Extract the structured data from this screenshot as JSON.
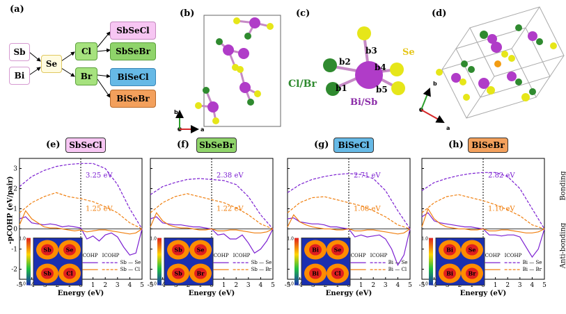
{
  "panel_a": {
    "label": "(a)",
    "elements": [
      "Sb",
      "Bi",
      "Se",
      "Cl",
      "Br"
    ],
    "compounds": [
      "SbSeCl",
      "SbSeBr",
      "BiSeCl",
      "BiSeBr"
    ],
    "compound_colors": [
      "#f7c6f3",
      "#8fd46a",
      "#66b9e6",
      "#f3a05c"
    ]
  },
  "panel_b": {
    "label": "(b)",
    "axis_b": "b",
    "axis_a": "a"
  },
  "panel_c": {
    "label": "(c)",
    "bonds": [
      "b1",
      "b2",
      "b3",
      "b4",
      "b5"
    ],
    "se": "Se",
    "halide": "Cl/Br",
    "center": "Bi/Sb"
  },
  "panel_d": {
    "label": "(d)",
    "axis_b": "b",
    "axis_a": "a"
  },
  "common": {
    "ylabel": "-pCOHP (eV/pair)",
    "xlabel": "Energy (eV)",
    "bonding": "Bonding",
    "antibonding": "Anti-bonding",
    "legend_cohp": "COHP",
    "legend_icohp": "ICOHP",
    "colorbar_max": "1.0",
    "colorbar_min": "0.0"
  },
  "chart_data": [
    {
      "type": "line",
      "label": "(e)",
      "compound": "SbSeCl",
      "color": "#f7c6f3",
      "central": "Sb",
      "halide": "Cl",
      "icohp_se": "3.25 eV",
      "icohp_x": "1.25 eV",
      "legend": [
        "Sb — Se",
        "Sb — Cl"
      ],
      "x": [
        -5,
        -4,
        -3,
        -2,
        -1,
        0,
        1,
        2,
        3,
        4,
        5
      ],
      "xlim": [
        -5,
        5
      ],
      "ylim": [
        -2.5,
        3.5
      ],
      "series": [
        {
          "name": "Sb — Se",
          "style": "solid",
          "x": [
            -5,
            -4.5,
            -4,
            -3.5,
            -3,
            -2.5,
            -2,
            -1.5,
            -1,
            -0.5,
            0,
            0.5,
            1,
            1.5,
            2,
            2.5,
            3,
            3.5,
            4,
            4.5,
            5
          ],
          "y": [
            0.5,
            0.6,
            0.3,
            0.25,
            0.2,
            0.25,
            0.2,
            0.1,
            0.15,
            0.1,
            0.05,
            -0.5,
            -0.35,
            -0.6,
            -0.3,
            -0.2,
            -0.4,
            -0.9,
            -1.3,
            -1.2,
            0.0
          ]
        },
        {
          "name": "Sb — Cl",
          "style": "solid",
          "x": [
            -5,
            -4.5,
            -4,
            -3.5,
            -3,
            -2.5,
            -2,
            -1.5,
            -1,
            -0.5,
            0,
            0.5,
            1,
            1.5,
            2,
            2.5,
            3,
            3.5,
            4,
            4.5,
            5
          ],
          "y": [
            0.2,
            0.9,
            0.5,
            0.3,
            0.1,
            0.05,
            0.05,
            0.0,
            -0.05,
            -0.1,
            -0.05,
            -0.15,
            -0.1,
            -0.05,
            -0.05,
            -0.1,
            -0.15,
            -0.2,
            -0.25,
            -0.2,
            0.0
          ]
        },
        {
          "name": "ICOHP Sb — Se",
          "style": "dashed",
          "x": [
            -5,
            -4,
            -3,
            -2,
            -1,
            0,
            1,
            2,
            3,
            4,
            5
          ],
          "y": [
            2.1,
            2.6,
            2.9,
            3.1,
            3.2,
            3.25,
            3.25,
            3.0,
            2.2,
            1.0,
            0.0
          ]
        },
        {
          "name": "ICOHP Sb — Cl",
          "style": "dashed",
          "x": [
            -5,
            -4,
            -3,
            -2,
            -1,
            0,
            1,
            2,
            3,
            4,
            5
          ],
          "y": [
            0.8,
            1.3,
            1.6,
            1.8,
            1.6,
            1.5,
            1.35,
            1.1,
            0.8,
            0.3,
            0.0
          ]
        }
      ]
    },
    {
      "type": "line",
      "label": "(f)",
      "compound": "SbSeBr",
      "color": "#8fd46a",
      "central": "Sb",
      "halide": "Br",
      "icohp_se": "2.38 eV",
      "icohp_x": "1.22 eV",
      "legend": [
        "Sb — Se",
        "Sb — Br"
      ],
      "x": [
        -5,
        -4,
        -3,
        -2,
        -1,
        0,
        1,
        2,
        3,
        4,
        5
      ],
      "xlim": [
        -5,
        5
      ],
      "ylim": [
        -2.5,
        3.5
      ],
      "series": [
        {
          "name": "Sb — Se",
          "style": "solid",
          "x": [
            -5,
            -4.5,
            -4,
            -3.5,
            -3,
            -2.5,
            -2,
            -1.5,
            -1,
            -0.5,
            0,
            0.5,
            1,
            1.5,
            2,
            2.5,
            3,
            3.5,
            4,
            4.5,
            5
          ],
          "y": [
            0.5,
            0.6,
            0.3,
            0.25,
            0.2,
            0.2,
            0.15,
            0.1,
            0.1,
            0.05,
            0.0,
            -0.3,
            -0.25,
            -0.5,
            -0.5,
            -0.3,
            -0.7,
            -1.2,
            -1.0,
            -0.6,
            0.0
          ]
        },
        {
          "name": "Sb — Br",
          "style": "solid",
          "x": [
            -5,
            -4.5,
            -4,
            -3.5,
            -3,
            -2.5,
            -2,
            -1.5,
            -1,
            -0.5,
            0,
            0.5,
            1,
            1.5,
            2,
            2.5,
            3,
            3.5,
            4,
            4.5,
            5
          ],
          "y": [
            0.1,
            0.8,
            0.4,
            0.2,
            0.1,
            0.05,
            0.05,
            0.0,
            -0.05,
            -0.05,
            0.0,
            -0.1,
            -0.1,
            -0.05,
            -0.05,
            -0.1,
            -0.15,
            -0.2,
            -0.2,
            -0.15,
            0.0
          ]
        },
        {
          "name": "ICOHP Sb — Se",
          "style": "dashed",
          "x": [
            -5,
            -4,
            -3,
            -2,
            -1,
            0,
            1,
            2,
            3,
            4,
            5
          ],
          "y": [
            1.7,
            2.1,
            2.3,
            2.45,
            2.5,
            2.45,
            2.4,
            2.2,
            1.6,
            0.7,
            0.0
          ]
        },
        {
          "name": "ICOHP Sb — Br",
          "style": "dashed",
          "x": [
            -5,
            -4,
            -3,
            -2,
            -1,
            0,
            1,
            2,
            3,
            4,
            5
          ],
          "y": [
            0.8,
            1.3,
            1.6,
            1.75,
            1.6,
            1.45,
            1.3,
            1.05,
            0.7,
            0.25,
            0.0
          ]
        }
      ]
    },
    {
      "type": "line",
      "label": "(g)",
      "compound": "BiSeCl",
      "color": "#66b9e6",
      "central": "Bi",
      "halide": "Cl",
      "icohp_se": "2.71 eV",
      "icohp_x": "1.08 eV",
      "legend": [
        "Bi — Se",
        "Bi — Cl"
      ],
      "x": [
        -5,
        -4,
        -3,
        -2,
        -1,
        0,
        1,
        2,
        3,
        4,
        5
      ],
      "xlim": [
        -5,
        5
      ],
      "ylim": [
        -2.5,
        3.5
      ],
      "series": [
        {
          "name": "Bi — Se",
          "style": "solid",
          "x": [
            -5,
            -4.5,
            -4,
            -3.5,
            -3,
            -2.5,
            -2,
            -1.5,
            -1,
            -0.5,
            0,
            0.5,
            1,
            1.5,
            2,
            2.5,
            3,
            3.5,
            4,
            4.5,
            5
          ],
          "y": [
            0.5,
            0.55,
            0.35,
            0.3,
            0.25,
            0.25,
            0.2,
            0.1,
            0.1,
            0.05,
            0.0,
            -0.4,
            -0.3,
            -0.4,
            -0.35,
            -0.3,
            -0.5,
            -1.0,
            -1.8,
            -1.3,
            0.0
          ]
        },
        {
          "name": "Bi — Cl",
          "style": "solid",
          "x": [
            -5,
            -4.5,
            -4,
            -3.5,
            -3,
            -2.5,
            -2,
            -1.5,
            -1,
            -0.5,
            0,
            0.5,
            1,
            1.5,
            2,
            2.5,
            3,
            3.5,
            4,
            4.5,
            5
          ],
          "y": [
            0.1,
            0.7,
            0.35,
            0.2,
            0.1,
            0.05,
            0.0,
            0.0,
            -0.05,
            -0.05,
            0.0,
            -0.1,
            -0.1,
            -0.05,
            -0.05,
            -0.1,
            -0.15,
            -0.2,
            -0.25,
            -0.2,
            0.0
          ]
        },
        {
          "name": "ICOHP Bi — Se",
          "style": "dashed",
          "x": [
            -5,
            -4,
            -3,
            -2,
            -1,
            0,
            1,
            2,
            3,
            4,
            5
          ],
          "y": [
            1.8,
            2.2,
            2.45,
            2.6,
            2.7,
            2.75,
            2.7,
            2.5,
            1.9,
            0.9,
            0.0
          ]
        },
        {
          "name": "ICOHP Bi — Cl",
          "style": "dashed",
          "x": [
            -5,
            -4,
            -3,
            -2,
            -1,
            0,
            1,
            2,
            3,
            4,
            5
          ],
          "y": [
            0.8,
            1.3,
            1.55,
            1.6,
            1.45,
            1.3,
            1.15,
            0.9,
            0.6,
            0.2,
            0.0
          ]
        }
      ]
    },
    {
      "type": "line",
      "label": "(h)",
      "compound": "BiSeBr",
      "color": "#f3a05c",
      "central": "Bi",
      "halide": "Br",
      "icohp_se": "2.82 eV",
      "icohp_x": "1.10 eV",
      "legend": [
        "Bi — Se",
        "Bi — Br"
      ],
      "x": [
        -5,
        -4,
        -3,
        -2,
        -1,
        0,
        1,
        2,
        3,
        4,
        5
      ],
      "xlim": [
        -5,
        5
      ],
      "ylim": [
        -2.5,
        3.5
      ],
      "series": [
        {
          "name": "Bi — Se",
          "style": "solid",
          "x": [
            -5,
            -4.5,
            -4,
            -3.5,
            -3,
            -2.5,
            -2,
            -1.5,
            -1,
            -0.5,
            0,
            0.5,
            1,
            1.5,
            2,
            2.5,
            3,
            3.5,
            4,
            4.5,
            5
          ],
          "y": [
            0.6,
            0.8,
            0.4,
            0.3,
            0.25,
            0.2,
            0.15,
            0.1,
            0.1,
            0.05,
            0.0,
            -0.3,
            -0.3,
            -0.35,
            -0.3,
            -0.3,
            -0.4,
            -0.9,
            -1.4,
            -1.0,
            0.0
          ]
        },
        {
          "name": "Bi — Br",
          "style": "solid",
          "x": [
            -5,
            -4.5,
            -4,
            -3.5,
            -3,
            -2.5,
            -2,
            -1.5,
            -1,
            -0.5,
            0,
            0.5,
            1,
            1.5,
            2,
            2.5,
            3,
            3.5,
            4,
            4.5,
            5
          ],
          "y": [
            0.1,
            1.0,
            0.5,
            0.25,
            0.1,
            0.05,
            0.0,
            0.0,
            -0.05,
            -0.05,
            0.0,
            -0.1,
            -0.1,
            -0.05,
            -0.05,
            -0.1,
            -0.15,
            -0.2,
            -0.2,
            -0.15,
            0.0
          ]
        },
        {
          "name": "ICOHP Bi — Se",
          "style": "dashed",
          "x": [
            -5,
            -4,
            -3,
            -2,
            -1,
            0,
            1,
            2,
            3,
            4,
            5
          ],
          "y": [
            1.9,
            2.3,
            2.5,
            2.65,
            2.75,
            2.8,
            2.8,
            2.6,
            2.0,
            1.0,
            0.0
          ]
        },
        {
          "name": "ICOHP Bi — Br",
          "style": "dashed",
          "x": [
            -5,
            -4,
            -3,
            -2,
            -1,
            0,
            1,
            2,
            3,
            4,
            5
          ],
          "y": [
            0.8,
            1.3,
            1.6,
            1.7,
            1.55,
            1.4,
            1.2,
            0.95,
            0.65,
            0.2,
            0.0
          ]
        }
      ]
    }
  ]
}
